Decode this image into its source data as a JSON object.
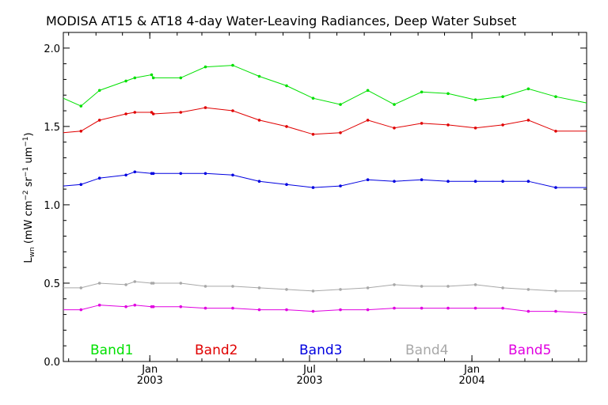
{
  "chart_data": {
    "type": "line",
    "title": "MODISA AT15 & AT18 4-day Water-Leaving Radiances, Deep Water Subset",
    "ylabel": "L_wn (mW cm^-2 sr^-1 um^-1)",
    "ylabel_parts": {
      "main": "L",
      "sub": "wn",
      "unit_open": " (mW cm",
      "exp1": "−2",
      "unit_mid": " sr",
      "exp2": "−1",
      "unit_mid2": " um",
      "exp3": "−1",
      "unit_close": ")"
    },
    "xlabel": "",
    "ylim": [
      0.0,
      2.1
    ],
    "xlim": [
      "2002-09-25",
      "2004-05-10"
    ],
    "yticks": [
      {
        "value": 0.0,
        "label": "0.0"
      },
      {
        "value": 0.5,
        "label": "0.5"
      },
      {
        "value": 1.0,
        "label": "1.0"
      },
      {
        "value": 1.5,
        "label": "1.5"
      },
      {
        "value": 2.0,
        "label": "2.0"
      }
    ],
    "xticks": [
      {
        "date": "2003-01-01",
        "month": "Jan",
        "year": "2003"
      },
      {
        "date": "2003-07-01",
        "month": "Jul",
        "year": "2003"
      },
      {
        "date": "2004-01-01",
        "month": "Jan",
        "year": "2004"
      }
    ],
    "x": [
      "2002-09-25",
      "2002-10-15",
      "2002-11-05",
      "2002-12-05",
      "2002-12-15",
      "2003-01-03",
      "2003-01-05",
      "2003-02-05",
      "2003-03-05",
      "2003-04-05",
      "2003-05-05",
      "2003-06-05",
      "2003-07-05",
      "2003-08-05",
      "2003-09-05",
      "2003-10-05",
      "2003-11-05",
      "2003-12-05",
      "2004-01-05",
      "2004-02-05",
      "2004-03-05",
      "2004-04-05",
      "2004-05-10"
    ],
    "series": [
      {
        "name": "Band1",
        "color": "#00e000",
        "values": [
          1.68,
          1.63,
          1.73,
          1.79,
          1.81,
          1.83,
          1.81,
          1.81,
          1.88,
          1.89,
          1.82,
          1.76,
          1.68,
          1.64,
          1.73,
          1.64,
          1.72,
          1.71,
          1.67,
          1.69,
          1.74,
          1.69,
          1.65
        ]
      },
      {
        "name": "Band2",
        "color": "#e00000",
        "values": [
          1.46,
          1.47,
          1.54,
          1.58,
          1.59,
          1.59,
          1.58,
          1.59,
          1.62,
          1.6,
          1.54,
          1.5,
          1.45,
          1.46,
          1.54,
          1.49,
          1.52,
          1.51,
          1.49,
          1.51,
          1.54,
          1.47,
          1.47
        ]
      },
      {
        "name": "Band3",
        "color": "#0000e0",
        "values": [
          1.12,
          1.13,
          1.17,
          1.19,
          1.21,
          1.2,
          1.2,
          1.2,
          1.2,
          1.19,
          1.15,
          1.13,
          1.11,
          1.12,
          1.16,
          1.15,
          1.16,
          1.15,
          1.15,
          1.15,
          1.15,
          1.11,
          1.11
        ]
      },
      {
        "name": "Band4",
        "color": "#a8a8a8",
        "values": [
          0.47,
          0.47,
          0.5,
          0.49,
          0.51,
          0.5,
          0.5,
          0.5,
          0.48,
          0.48,
          0.47,
          0.46,
          0.45,
          0.46,
          0.47,
          0.49,
          0.48,
          0.48,
          0.49,
          0.47,
          0.46,
          0.45,
          0.45
        ]
      },
      {
        "name": "Band5",
        "color": "#e000e0",
        "values": [
          0.33,
          0.33,
          0.36,
          0.35,
          0.36,
          0.35,
          0.35,
          0.35,
          0.34,
          0.34,
          0.33,
          0.33,
          0.32,
          0.33,
          0.33,
          0.34,
          0.34,
          0.34,
          0.34,
          0.34,
          0.32,
          0.32,
          0.31
        ]
      }
    ],
    "legend_placement": "bottom",
    "grid": false
  }
}
